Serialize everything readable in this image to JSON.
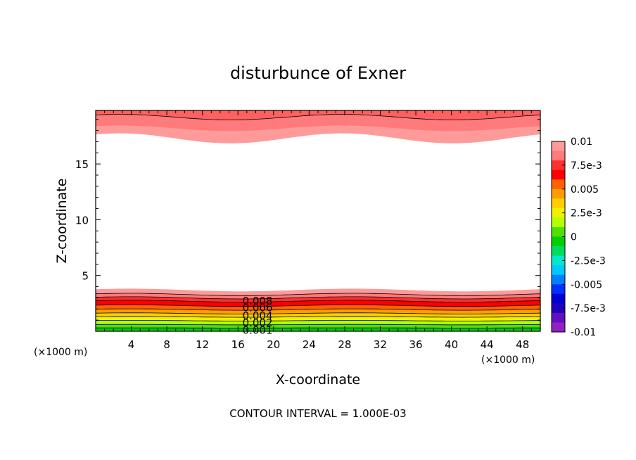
{
  "chart_data": {
    "type": "heatmap",
    "title": "disturbunce of Exner",
    "xlabel": "X-coordinate",
    "ylabel": "Z-coordinate",
    "x_unit_left": "(×1000 m)",
    "x_unit_right": "(×1000 m)",
    "footer": "CONTOUR INTERVAL = 1.000E-03",
    "xlim": [
      0,
      50
    ],
    "ylim": [
      0,
      19.8
    ],
    "x_ticks": [
      4,
      8,
      12,
      16,
      20,
      24,
      28,
      32,
      36,
      40,
      44,
      48
    ],
    "x_tick_labels": [
      "4",
      "8",
      "12",
      "16",
      "20",
      "24",
      "28",
      "32",
      "36",
      "40",
      "44",
      "48"
    ],
    "y_ticks": [
      5,
      10,
      15
    ],
    "y_tick_labels": [
      "5",
      "10",
      "15"
    ],
    "contour_interval": 0.001,
    "contour_labels": [
      "0.008",
      "0.006",
      "0.004",
      "0.002",
      "0.001"
    ],
    "colorbar": {
      "labels": [
        "0.01",
        "7.5e-3",
        "0.005",
        "2.5e-3",
        "0",
        "-2.5e-3",
        "-0.005",
        "-7.5e-3",
        "-0.01"
      ],
      "colors_top_to_bottom": [
        "#ff9a9a",
        "#ff7a7a",
        "#ff3030",
        "#ff0000",
        "#ff6000",
        "#ff9c00",
        "#ffd000",
        "#f0f000",
        "#b4ff00",
        "#50e000",
        "#00d000",
        "#00dc60",
        "#00e8c8",
        "#00c8ff",
        "#0080ff",
        "#0030ff",
        "#0000d0",
        "#2000c0",
        "#6010c0",
        "#9020c0"
      ]
    },
    "bottom_layer": {
      "description_free": true,
      "levels": [
        {
          "z_top": 0.3,
          "value": 0.0005,
          "color": "#00d000"
        },
        {
          "z_top": 0.6,
          "value": 0.001,
          "color": "#50e000"
        },
        {
          "z_top": 0.95,
          "value": 0.0015,
          "color": "#b4ff00"
        },
        {
          "z_top": 1.3,
          "value": 0.002,
          "color": "#f0f000"
        },
        {
          "z_top": 1.6,
          "value": 0.003,
          "color": "#ffd000"
        },
        {
          "z_top": 1.95,
          "value": 0.004,
          "color": "#ff9c00"
        },
        {
          "z_top": 2.3,
          "value": 0.005,
          "color": "#ff6000"
        },
        {
          "z_top": 2.7,
          "value": 0.006,
          "color": "#ff0000"
        },
        {
          "z_top": 3.0,
          "value": 0.007,
          "color": "#ff3030"
        },
        {
          "z_top": 3.3,
          "value": 0.008,
          "color": "#ff7a7a"
        },
        {
          "z_top": 3.7,
          "value": 0.009,
          "color": "#ff9a9a"
        }
      ]
    },
    "top_layer": {
      "levels": [
        {
          "z_bottom": 17.3,
          "value": 0.009,
          "color": "#ff9a9a"
        },
        {
          "z_bottom": 18.2,
          "value": 0.0095,
          "color": "#ff7a7a"
        },
        {
          "z_bottom": 19.2,
          "value": 0.01,
          "color": "#ff6060"
        }
      ]
    }
  }
}
